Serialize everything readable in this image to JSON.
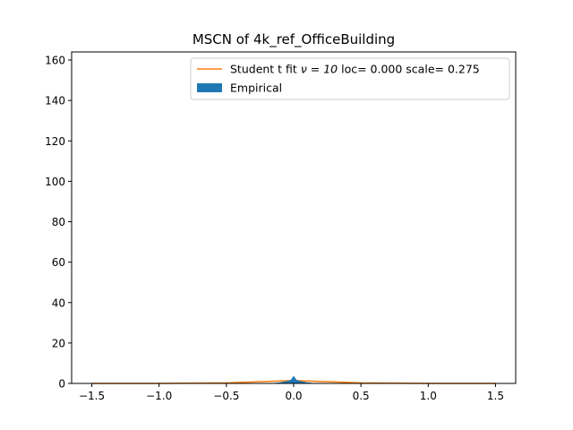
{
  "chart_data": {
    "type": "area",
    "title": "MSCN of 4k_ref_OfficeBuilding",
    "xlabel": "",
    "ylabel": "",
    "xlim": [
      -1.65,
      1.65
    ],
    "ylim": [
      0,
      164
    ],
    "xticks": [
      -1.5,
      -1.0,
      -0.5,
      0.0,
      0.5,
      1.0,
      1.5
    ],
    "xtick_labels": [
      "−1.5",
      "−1.0",
      "−0.5",
      "0.0",
      "0.5",
      "1.0",
      "1.5"
    ],
    "yticks": [
      0,
      20,
      40,
      60,
      80,
      100,
      120,
      140,
      160
    ],
    "ytick_labels": [
      "0",
      "20",
      "40",
      "60",
      "80",
      "100",
      "120",
      "140",
      "160"
    ],
    "grid": false,
    "legend_position": "top-right",
    "legend": [
      {
        "label_prefix": "Student t fit ",
        "label_nu": "ν = 10",
        "label_suffix": " loc= 0.000 scale= 0.275",
        "color": "#ff7f0e",
        "kind": "line"
      },
      {
        "label": "Empirical",
        "color": "#1f77b4",
        "kind": "patch"
      }
    ],
    "series": [
      {
        "name": "Student t fit ν = 10 loc= 0.000 scale= 0.275",
        "kind": "line",
        "color": "#ff7f0e",
        "x": [
          -1.5,
          -1.0,
          -0.5,
          0.0,
          0.5,
          1.0,
          1.5
        ],
        "y": [
          0.0,
          0.02,
          0.28,
          1.42,
          0.28,
          0.02,
          0.0
        ]
      },
      {
        "name": "Empirical",
        "kind": "histogram",
        "color": "#1f77b4",
        "x": [
          -0.15,
          -0.1,
          -0.05,
          -0.02,
          0.0,
          0.02,
          0.05,
          0.1,
          0.15
        ],
        "y": [
          0.0,
          0.4,
          1.0,
          1.6,
          3.4,
          1.6,
          1.0,
          0.4,
          0.0
        ]
      }
    ]
  }
}
